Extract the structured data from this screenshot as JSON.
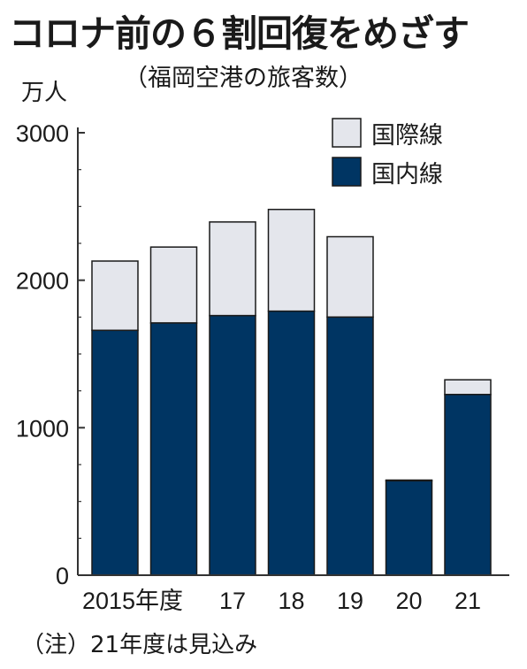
{
  "title": "コロナ前の６割回復をめざす",
  "subtitle": "（福岡空港の旅客数）",
  "unit": "万人",
  "note": "（注）21年度は見込み",
  "colors": {
    "international": "#e4e6ec",
    "domestic": "#003563",
    "axis": "#333333",
    "outline": "#1a1a1a"
  },
  "chart_data": {
    "type": "bar",
    "stacked": true,
    "categories": [
      "2015年度",
      "",
      "17",
      "18",
      "19",
      "20",
      "21"
    ],
    "series": [
      {
        "name": "国内線",
        "values": [
          1660,
          1710,
          1760,
          1790,
          1750,
          640,
          1225
        ]
      },
      {
        "name": "国際線",
        "values": [
          470,
          515,
          635,
          690,
          545,
          5,
          100
        ]
      }
    ],
    "ylim": [
      0,
      3000
    ],
    "yticks": [
      "0",
      "1000",
      "2000",
      "3000"
    ],
    "ytick_values": [
      0,
      1000,
      2000,
      3000
    ],
    "legend": [
      "国際線",
      "国内線"
    ],
    "legend_position": "top-right"
  }
}
